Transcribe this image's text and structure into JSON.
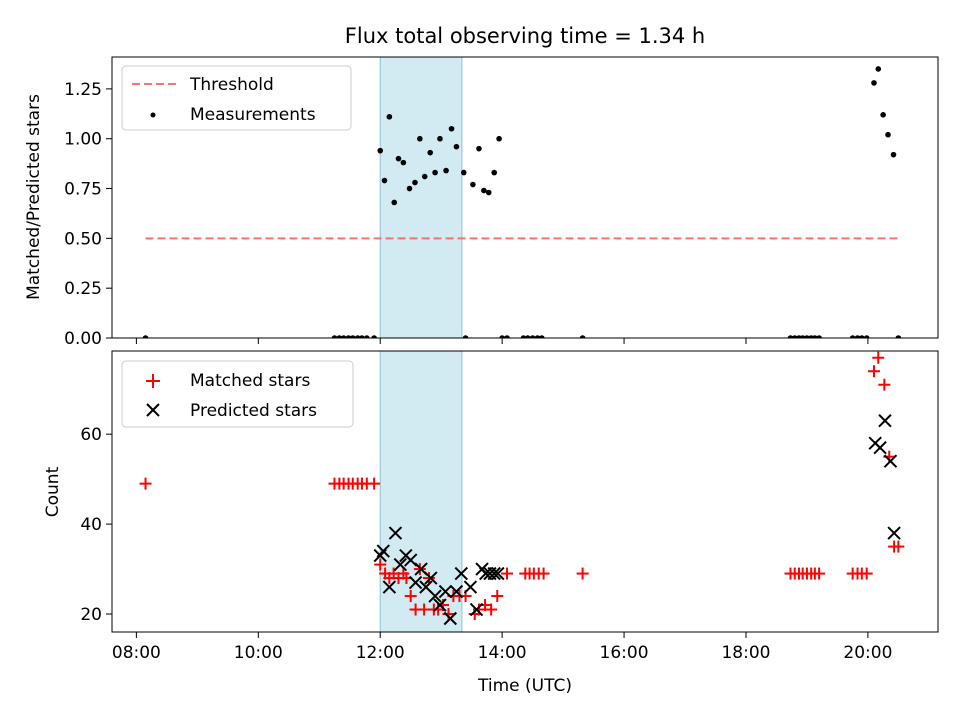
{
  "chart_data": {
    "title": "Flux total observing time = 1.34 h",
    "xlabel": "Time (UTC)",
    "x_unit": "hours UTC",
    "xlim": [
      7.6,
      21.15
    ],
    "x_ticks": [
      8,
      10,
      12,
      14,
      16,
      18,
      20
    ],
    "x_tick_labels": [
      "08:00",
      "10:00",
      "12:00",
      "14:00",
      "16:00",
      "18:00",
      "20:00"
    ],
    "shaded_interval": {
      "x": [
        12.0,
        13.34
      ],
      "color": "#add8e6"
    },
    "panels": [
      {
        "type": "scatter",
        "ylabel": "Matched/Predicted stars",
        "ylim": [
          0.0,
          1.41
        ],
        "y_ticks": [
          0.0,
          0.25,
          0.5,
          0.75,
          1.0,
          1.25
        ],
        "y_tick_labels": [
          "0.00",
          "0.25",
          "0.50",
          "0.75",
          "1.00",
          "1.25"
        ],
        "legend_position": "upper-left",
        "threshold": {
          "name": "Threshold",
          "y": 0.5,
          "x": [
            8.15,
            20.5
          ],
          "color": "#ff7070",
          "style": "dashed"
        },
        "series": [
          {
            "name": "Measurements",
            "marker": "dot",
            "color": "#000000",
            "x": [
              8.15,
              11.25,
              11.33,
              11.4,
              11.48,
              11.55,
              11.63,
              11.7,
              11.78,
              11.9,
              13.4,
              14.0,
              14.08,
              14.35,
              14.42,
              14.5,
              14.58,
              14.65,
              15.32,
              18.73,
              18.8,
              18.87,
              18.93,
              19.0,
              19.07,
              19.13,
              19.2,
              19.75,
              19.83,
              19.9,
              19.98,
              20.5,
              12.0,
              12.07,
              12.15,
              12.23,
              12.3,
              12.38,
              12.48,
              12.57,
              12.65,
              12.73,
              12.82,
              12.9,
              12.98,
              13.08,
              13.17,
              13.25,
              13.37,
              13.52,
              13.62,
              13.7,
              13.78,
              13.87,
              13.95,
              20.1,
              20.17,
              20.25,
              20.33,
              20.42
            ],
            "y": [
              0,
              0,
              0,
              0,
              0,
              0,
              0,
              0,
              0,
              0,
              0,
              0,
              0,
              0,
              0,
              0,
              0,
              0,
              0,
              0,
              0,
              0,
              0,
              0,
              0,
              0,
              0,
              0,
              0,
              0,
              0,
              0,
              0.94,
              0.79,
              1.11,
              0.68,
              0.9,
              0.88,
              0.75,
              0.78,
              1.0,
              0.81,
              0.93,
              0.83,
              1.0,
              0.84,
              1.05,
              0.96,
              0.83,
              0.77,
              0.95,
              0.74,
              0.73,
              0.83,
              1.0,
              1.28,
              1.35,
              1.12,
              1.02,
              0.92
            ]
          }
        ]
      },
      {
        "type": "scatter",
        "ylabel": "Count",
        "ylim": [
          16,
          78.5
        ],
        "y_ticks": [
          20,
          40,
          60
        ],
        "y_tick_labels": [
          "20",
          "40",
          "60"
        ],
        "legend_position": "upper-left",
        "series": [
          {
            "name": "Matched stars",
            "marker": "plus",
            "color": "#ff0000",
            "x": [
              8.15,
              11.25,
              11.33,
              11.4,
              11.48,
              11.55,
              11.63,
              11.7,
              11.78,
              11.9,
              12.0,
              12.08,
              12.15,
              12.22,
              12.3,
              12.38,
              12.43,
              12.5,
              12.58,
              12.65,
              12.72,
              12.8,
              12.88,
              12.95,
              13.03,
              13.12,
              13.2,
              13.3,
              13.4,
              13.55,
              13.62,
              13.72,
              13.82,
              13.92,
              14.08,
              14.38,
              14.45,
              14.52,
              14.6,
              14.68,
              15.32,
              18.73,
              18.8,
              18.87,
              18.93,
              19.0,
              19.07,
              19.13,
              19.2,
              19.75,
              19.83,
              19.9,
              19.98,
              20.1,
              20.17,
              20.27,
              20.35,
              20.43,
              20.5
            ],
            "y": [
              49,
              49,
              49,
              49,
              49,
              49,
              49,
              49,
              49,
              49,
              31,
              29,
              28,
              29,
              28,
              29,
              28,
              24,
              21,
              30,
              21,
              28,
              21,
              21,
              22,
              20,
              24,
              24,
              24,
              20,
              21,
              22,
              21,
              24,
              29,
              29,
              29,
              29,
              29,
              29,
              29,
              29,
              29,
              29,
              29,
              29,
              29,
              29,
              29,
              29,
              29,
              29,
              29,
              74,
              77,
              71,
              55,
              35,
              35
            ]
          },
          {
            "name": "Predicted stars",
            "marker": "x",
            "color": "#000000",
            "x": [
              12.0,
              12.05,
              12.15,
              12.25,
              12.33,
              12.42,
              12.5,
              12.58,
              12.67,
              12.75,
              12.83,
              12.9,
              12.98,
              13.07,
              13.15,
              13.25,
              13.33,
              13.48,
              13.58,
              13.67,
              13.73,
              13.8,
              13.87,
              13.93,
              20.12,
              20.2,
              20.28,
              20.37,
              20.43
            ],
            "y": [
              33,
              34,
              26,
              38,
              31,
              33,
              32,
              27,
              30,
              26,
              28,
              24,
              22,
              25,
              19,
              25,
              29,
              26,
              21,
              30,
              29,
              29,
              29,
              29,
              58,
              57,
              63,
              54,
              38
            ]
          }
        ]
      }
    ]
  }
}
